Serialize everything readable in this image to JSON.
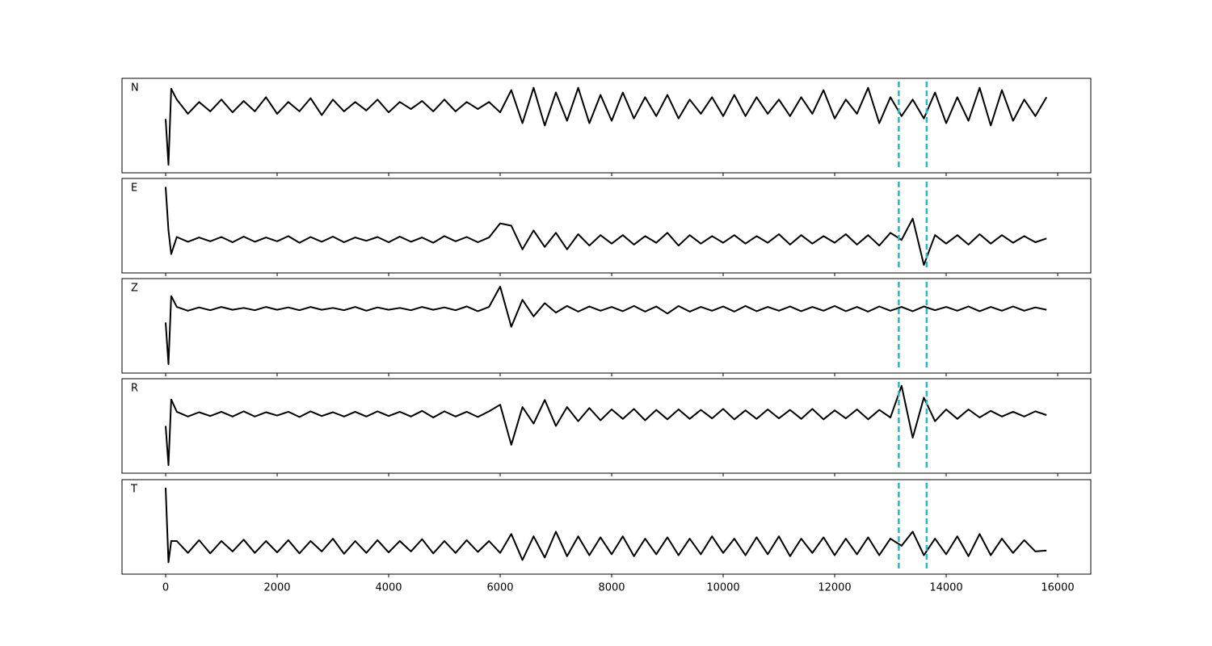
{
  "chart_data": [
    {
      "type": "line",
      "label": "N",
      "color": "#000000",
      "vline_color": "#17becf",
      "show_xtick_labels": false,
      "xlim": [
        -783,
        16594
      ],
      "ylim": [
        -1,
        1
      ],
      "xticks": [
        0,
        2000,
        4000,
        6000,
        8000,
        10000,
        12000,
        14000,
        16000
      ],
      "vlines": [
        13150,
        13650
      ],
      "x": [
        0,
        50,
        100,
        200,
        400,
        600,
        800,
        1000,
        1200,
        1400,
        1600,
        1800,
        2000,
        2200,
        2400,
        2600,
        2800,
        3000,
        3200,
        3400,
        3600,
        3800,
        4000,
        4200,
        4400,
        4600,
        4800,
        5000,
        5200,
        5400,
        5600,
        5800,
        6000,
        6200,
        6400,
        6600,
        6800,
        7000,
        7200,
        7400,
        7600,
        7800,
        8000,
        8200,
        8400,
        8600,
        8800,
        9000,
        9200,
        9400,
        9600,
        9800,
        10000,
        10200,
        10400,
        10600,
        10800,
        11000,
        11200,
        11400,
        11600,
        11800,
        12000,
        12200,
        12400,
        12600,
        12800,
        13000,
        13200,
        13400,
        13600,
        13800,
        14000,
        14200,
        14400,
        14600,
        14800,
        15000,
        15200,
        15400,
        15600,
        15800
      ],
      "values": [
        0.14,
        -0.83,
        0.78,
        0.55,
        0.25,
        0.5,
        0.3,
        0.55,
        0.28,
        0.52,
        0.3,
        0.6,
        0.25,
        0.5,
        0.3,
        0.58,
        0.22,
        0.55,
        0.3,
        0.5,
        0.32,
        0.55,
        0.28,
        0.5,
        0.35,
        0.52,
        0.3,
        0.55,
        0.3,
        0.5,
        0.35,
        0.5,
        0.28,
        0.75,
        0.05,
        0.8,
        0.0,
        0.7,
        0.1,
        0.8,
        0.05,
        0.65,
        0.1,
        0.7,
        0.15,
        0.6,
        0.2,
        0.65,
        0.15,
        0.55,
        0.25,
        0.6,
        0.2,
        0.65,
        0.2,
        0.6,
        0.25,
        0.55,
        0.2,
        0.6,
        0.25,
        0.75,
        0.15,
        0.55,
        0.25,
        0.8,
        0.05,
        0.6,
        0.2,
        0.55,
        0.15,
        0.7,
        0.05,
        0.6,
        0.1,
        0.8,
        0.0,
        0.75,
        0.1,
        0.55,
        0.2,
        0.6
      ]
    },
    {
      "type": "line",
      "label": "E",
      "color": "#000000",
      "vline_color": "#17becf",
      "show_xtick_labels": false,
      "xlim": [
        -783,
        16594
      ],
      "ylim": [
        -1,
        1
      ],
      "xticks": [
        0,
        2000,
        4000,
        6000,
        8000,
        10000,
        12000,
        14000,
        16000
      ],
      "vlines": [
        13150,
        13650
      ],
      "x": [
        0,
        50,
        100,
        200,
        400,
        600,
        800,
        1000,
        1200,
        1400,
        1600,
        1800,
        2000,
        2200,
        2400,
        2600,
        2800,
        3000,
        3200,
        3400,
        3600,
        3800,
        4000,
        4200,
        4400,
        4600,
        4800,
        5000,
        5200,
        5400,
        5600,
        5800,
        6000,
        6200,
        6400,
        6600,
        6800,
        7000,
        7200,
        7400,
        7600,
        7800,
        8000,
        8200,
        8400,
        8600,
        8800,
        9000,
        9200,
        9400,
        9600,
        9800,
        10000,
        10200,
        10400,
        10600,
        10800,
        11000,
        11200,
        11400,
        11600,
        11800,
        12000,
        12200,
        12400,
        12600,
        12800,
        13000,
        13200,
        13400,
        13600,
        13800,
        14000,
        14200,
        14400,
        14600,
        14800,
        15000,
        15200,
        15400,
        15600,
        15800
      ],
      "values": [
        0.82,
        -0.1,
        -0.6,
        -0.24,
        -0.34,
        -0.25,
        -0.33,
        -0.24,
        -0.35,
        -0.23,
        -0.34,
        -0.25,
        -0.33,
        -0.22,
        -0.36,
        -0.24,
        -0.34,
        -0.23,
        -0.35,
        -0.25,
        -0.32,
        -0.24,
        -0.35,
        -0.23,
        -0.34,
        -0.25,
        -0.36,
        -0.22,
        -0.33,
        -0.24,
        -0.35,
        -0.25,
        0.05,
        0.0,
        -0.5,
        -0.1,
        -0.45,
        -0.15,
        -0.5,
        -0.18,
        -0.42,
        -0.2,
        -0.38,
        -0.2,
        -0.4,
        -0.22,
        -0.36,
        -0.15,
        -0.42,
        -0.2,
        -0.38,
        -0.22,
        -0.36,
        -0.2,
        -0.38,
        -0.22,
        -0.36,
        -0.18,
        -0.4,
        -0.2,
        -0.38,
        -0.22,
        -0.36,
        -0.18,
        -0.4,
        -0.2,
        -0.42,
        -0.15,
        -0.3,
        0.15,
        -0.83,
        -0.2,
        -0.38,
        -0.2,
        -0.4,
        -0.18,
        -0.38,
        -0.2,
        -0.36,
        -0.22,
        -0.35,
        -0.27
      ]
    },
    {
      "type": "line",
      "label": "Z",
      "color": "#000000",
      "vline_color": "#17becf",
      "show_xtick_labels": false,
      "xlim": [
        -783,
        16594
      ],
      "ylim": [
        -1,
        1
      ],
      "xticks": [
        0,
        2000,
        4000,
        6000,
        8000,
        10000,
        12000,
        14000,
        16000
      ],
      "vlines": [
        13150,
        13650
      ],
      "x": [
        0,
        50,
        100,
        200,
        400,
        600,
        800,
        1000,
        1200,
        1400,
        1600,
        1800,
        2000,
        2200,
        2400,
        2600,
        2800,
        3000,
        3200,
        3400,
        3600,
        3800,
        4000,
        4200,
        4400,
        4600,
        4800,
        5000,
        5200,
        5400,
        5600,
        5800,
        6000,
        6200,
        6400,
        6600,
        6800,
        7000,
        7200,
        7400,
        7600,
        7800,
        8000,
        8200,
        8400,
        8600,
        8800,
        9000,
        9200,
        9400,
        9600,
        9800,
        10000,
        10200,
        10400,
        10600,
        10800,
        11000,
        11200,
        11400,
        11600,
        11800,
        12000,
        12200,
        12400,
        12600,
        12800,
        13000,
        13200,
        13400,
        13600,
        13800,
        14000,
        14200,
        14400,
        14600,
        14800,
        15000,
        15200,
        15400,
        15600,
        15800
      ],
      "values": [
        0.07,
        -0.81,
        0.63,
        0.4,
        0.32,
        0.39,
        0.33,
        0.4,
        0.34,
        0.38,
        0.33,
        0.4,
        0.34,
        0.39,
        0.33,
        0.4,
        0.34,
        0.38,
        0.33,
        0.4,
        0.32,
        0.39,
        0.34,
        0.38,
        0.33,
        0.4,
        0.34,
        0.39,
        0.33,
        0.41,
        0.31,
        0.4,
        0.83,
        -0.02,
        0.55,
        0.2,
        0.48,
        0.28,
        0.42,
        0.3,
        0.41,
        0.32,
        0.4,
        0.31,
        0.42,
        0.3,
        0.41,
        0.26,
        0.42,
        0.3,
        0.4,
        0.32,
        0.41,
        0.3,
        0.42,
        0.31,
        0.4,
        0.32,
        0.41,
        0.31,
        0.4,
        0.32,
        0.42,
        0.31,
        0.4,
        0.3,
        0.41,
        0.32,
        0.4,
        0.31,
        0.41,
        0.33,
        0.4,
        0.32,
        0.41,
        0.31,
        0.4,
        0.32,
        0.41,
        0.32,
        0.39,
        0.34
      ]
    },
    {
      "type": "line",
      "label": "R",
      "color": "#000000",
      "vline_color": "#17becf",
      "show_xtick_labels": false,
      "xlim": [
        -783,
        16594
      ],
      "ylim": [
        -1,
        1
      ],
      "xticks": [
        0,
        2000,
        4000,
        6000,
        8000,
        10000,
        12000,
        14000,
        16000
      ],
      "vlines": [
        13150,
        13650
      ],
      "x": [
        0,
        50,
        100,
        200,
        400,
        600,
        800,
        1000,
        1200,
        1400,
        1600,
        1800,
        2000,
        2200,
        2400,
        2600,
        2800,
        3000,
        3200,
        3400,
        3600,
        3800,
        4000,
        4200,
        4400,
        4600,
        4800,
        5000,
        5200,
        5400,
        5600,
        5800,
        6000,
        6200,
        6400,
        6600,
        6800,
        7000,
        7200,
        7400,
        7600,
        7800,
        8000,
        8200,
        8400,
        8600,
        8800,
        9000,
        9200,
        9400,
        9600,
        9800,
        10000,
        10200,
        10400,
        10600,
        10800,
        11000,
        11200,
        11400,
        11600,
        11800,
        12000,
        12200,
        12400,
        12600,
        12800,
        13000,
        13200,
        13400,
        13600,
        13800,
        14000,
        14200,
        14400,
        14600,
        14800,
        15000,
        15200,
        15400,
        15600,
        15800
      ],
      "values": [
        0.0,
        -0.83,
        0.56,
        0.3,
        0.2,
        0.29,
        0.21,
        0.3,
        0.2,
        0.31,
        0.2,
        0.29,
        0.22,
        0.3,
        0.19,
        0.31,
        0.21,
        0.29,
        0.2,
        0.3,
        0.2,
        0.31,
        0.21,
        0.3,
        0.2,
        0.32,
        0.18,
        0.31,
        0.2,
        0.3,
        0.19,
        0.31,
        0.45,
        -0.4,
        0.4,
        0.05,
        0.55,
        0.0,
        0.4,
        0.1,
        0.38,
        0.12,
        0.35,
        0.15,
        0.36,
        0.12,
        0.34,
        0.14,
        0.35,
        0.15,
        0.34,
        0.16,
        0.36,
        0.14,
        0.33,
        0.15,
        0.35,
        0.16,
        0.34,
        0.15,
        0.36,
        0.14,
        0.33,
        0.16,
        0.35,
        0.14,
        0.34,
        0.18,
        0.85,
        -0.25,
        0.6,
        0.1,
        0.35,
        0.15,
        0.35,
        0.18,
        0.32,
        0.2,
        0.3,
        0.2,
        0.31,
        0.23
      ]
    },
    {
      "type": "line",
      "label": "T",
      "color": "#000000",
      "vline_color": "#17becf",
      "show_xtick_labels": true,
      "xlim": [
        -783,
        16594
      ],
      "ylim": [
        -1,
        1
      ],
      "xticks": [
        0,
        2000,
        4000,
        6000,
        8000,
        10000,
        12000,
        14000,
        16000
      ],
      "vlines": [
        13150,
        13650
      ],
      "x": [
        0,
        50,
        100,
        200,
        400,
        600,
        800,
        1000,
        1200,
        1400,
        1600,
        1800,
        2000,
        2200,
        2400,
        2600,
        2800,
        3000,
        3200,
        3400,
        3600,
        3800,
        4000,
        4200,
        4400,
        4600,
        4800,
        5000,
        5200,
        5400,
        5600,
        5800,
        6000,
        6200,
        6400,
        6600,
        6800,
        7000,
        7200,
        7400,
        7600,
        7800,
        8000,
        8200,
        8400,
        8600,
        8800,
        9000,
        9200,
        9400,
        9600,
        9800,
        10000,
        10200,
        10400,
        10600,
        10800,
        11000,
        11200,
        11400,
        11600,
        11800,
        12000,
        12200,
        12400,
        12600,
        12800,
        13000,
        13200,
        13400,
        13600,
        13800,
        14000,
        14200,
        14400,
        14600,
        14800,
        15000,
        15200,
        15400,
        15600,
        15800
      ],
      "values": [
        0.83,
        -0.75,
        -0.3,
        -0.3,
        -0.55,
        -0.28,
        -0.56,
        -0.3,
        -0.52,
        -0.27,
        -0.55,
        -0.3,
        -0.54,
        -0.28,
        -0.56,
        -0.3,
        -0.52,
        -0.25,
        -0.57,
        -0.3,
        -0.55,
        -0.28,
        -0.54,
        -0.3,
        -0.52,
        -0.26,
        -0.56,
        -0.3,
        -0.55,
        -0.28,
        -0.53,
        -0.3,
        -0.55,
        -0.15,
        -0.7,
        -0.2,
        -0.65,
        -0.1,
        -0.62,
        -0.2,
        -0.6,
        -0.22,
        -0.58,
        -0.2,
        -0.62,
        -0.25,
        -0.58,
        -0.22,
        -0.6,
        -0.25,
        -0.58,
        -0.2,
        -0.55,
        -0.25,
        -0.6,
        -0.22,
        -0.58,
        -0.2,
        -0.62,
        -0.25,
        -0.55,
        -0.22,
        -0.6,
        -0.25,
        -0.58,
        -0.22,
        -0.6,
        -0.25,
        -0.4,
        -0.1,
        -0.6,
        -0.25,
        -0.58,
        -0.2,
        -0.62,
        -0.15,
        -0.6,
        -0.25,
        -0.55,
        -0.28,
        -0.52,
        -0.5
      ]
    }
  ]
}
